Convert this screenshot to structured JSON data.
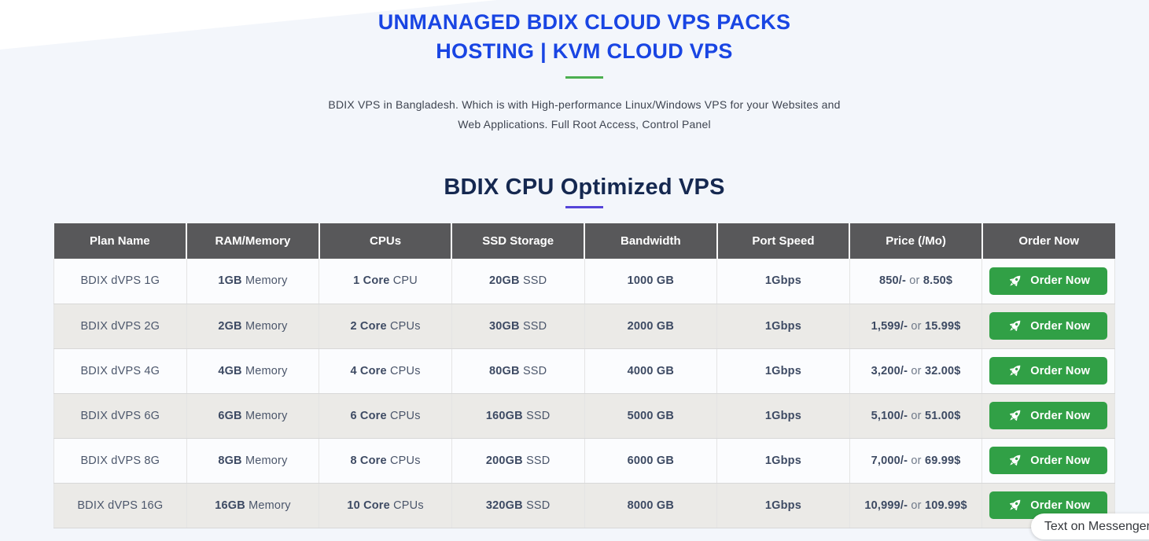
{
  "hero": {
    "title_line1": "UNMANAGED BDIX CLOUD VPS PACKS",
    "title_line2": "HOSTING | KVM CLOUD VPS",
    "subtitle_line1": "BDIX VPS in Bangladesh. Which is with High-performance Linux/Windows VPS for your Websites and",
    "subtitle_line2": "Web Applications. Full Root Access, Control Panel"
  },
  "section": {
    "title": "BDIX CPU Optimized VPS"
  },
  "table": {
    "headers": [
      "Plan Name",
      "RAM/Memory",
      "CPUs",
      "SSD Storage",
      "Bandwidth",
      "Port Speed",
      "Price (/Mo)",
      "Order Now"
    ],
    "order_button_label": "Order Now",
    "rocket_icon": "rocket-icon",
    "rows": [
      {
        "plan": "BDIX dVPS 1G",
        "ram_bold": "1GB",
        "ram_rest": "Memory",
        "cpu_bold": "1 Core",
        "cpu_rest": "CPU",
        "ssd_bold": "20GB",
        "ssd_rest": "SSD",
        "bandwidth": "1000 GB",
        "port": "1Gbps",
        "price_bdt": "850/-",
        "price_or": "or",
        "price_usd": "8.50$"
      },
      {
        "plan": "BDIX dVPS 2G",
        "ram_bold": "2GB",
        "ram_rest": "Memory",
        "cpu_bold": "2 Core",
        "cpu_rest": "CPUs",
        "ssd_bold": "30GB",
        "ssd_rest": "SSD",
        "bandwidth": "2000 GB",
        "port": "1Gbps",
        "price_bdt": "1,599/-",
        "price_or": "or",
        "price_usd": "15.99$"
      },
      {
        "plan": "BDIX dVPS 4G",
        "ram_bold": "4GB",
        "ram_rest": "Memory",
        "cpu_bold": "4 Core",
        "cpu_rest": "CPUs",
        "ssd_bold": "80GB",
        "ssd_rest": "SSD",
        "bandwidth": "4000 GB",
        "port": "1Gbps",
        "price_bdt": "3,200/-",
        "price_or": "or",
        "price_usd": "32.00$"
      },
      {
        "plan": "BDIX dVPS 6G",
        "ram_bold": "6GB",
        "ram_rest": "Memory",
        "cpu_bold": "6 Core",
        "cpu_rest": "CPUs",
        "ssd_bold": "160GB",
        "ssd_rest": "SSD",
        "bandwidth": "5000 GB",
        "port": "1Gbps",
        "price_bdt": "5,100/-",
        "price_or": "or",
        "price_usd": "51.00$"
      },
      {
        "plan": "BDIX dVPS 8G",
        "ram_bold": "8GB",
        "ram_rest": "Memory",
        "cpu_bold": "8 Core",
        "cpu_rest": "CPUs",
        "ssd_bold": "200GB",
        "ssd_rest": "SSD",
        "bandwidth": "6000 GB",
        "port": "1Gbps",
        "price_bdt": "7,000/-",
        "price_or": "or",
        "price_usd": "69.99$"
      },
      {
        "plan": "BDIX dVPS 16G",
        "ram_bold": "16GB",
        "ram_rest": "Memory",
        "cpu_bold": "10 Core",
        "cpu_rest": "CPUs",
        "ssd_bold": "320GB",
        "ssd_rest": "SSD",
        "bandwidth": "8000 GB",
        "port": "1Gbps",
        "price_bdt": "10,999/-",
        "price_or": "or",
        "price_usd": "109.99$"
      }
    ]
  },
  "messenger": {
    "label": "Text on Messenger"
  },
  "colors": {
    "title_blue": "#1945e3",
    "divider_green": "#4caf50",
    "section_navy": "#152850",
    "divider_purple": "#5544d8",
    "header_bg": "#58585a",
    "button_green": "#31a046",
    "row_light": "#fbfcfe",
    "row_alt": "#ebeae7",
    "page_bg": "#f3f6fb"
  }
}
